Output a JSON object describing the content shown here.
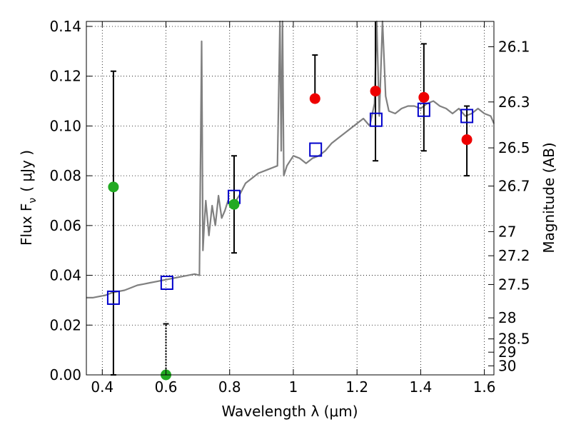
{
  "chart_data": {
    "type": "scatter",
    "xlabel": "Wavelength  λ (μm)",
    "ylabel": "Flux  F",
    "ylabel_subscript": "ν",
    "ylabel_unit": "( μJy )",
    "ylabel_right": "Magnitude (AB)",
    "xlim": [
      0.35,
      1.63
    ],
    "ylim": [
      0.0,
      0.142
    ],
    "x_ticks": [
      0.4,
      0.6,
      0.8,
      1.0,
      1.2,
      1.4,
      1.6
    ],
    "x_tick_labels": [
      "0.4",
      "0.6",
      "0.8",
      "1",
      "1.2",
      "1.4",
      "1.6"
    ],
    "y_ticks": [
      0.0,
      0.02,
      0.04,
      0.06,
      0.08,
      0.1,
      0.12,
      0.14
    ],
    "y_tick_labels": [
      "0.00",
      "0.02",
      "0.04",
      "0.06",
      "0.08",
      "0.10",
      "0.12",
      "0.14"
    ],
    "mag_ticks": [
      26.1,
      26.3,
      26.5,
      26.7,
      27,
      27.2,
      27.5,
      28,
      28.5,
      29,
      30
    ],
    "mag_tick_labels": [
      "26.1",
      "26.3",
      "26.5",
      "26.7",
      "27",
      "27.2",
      "27.5",
      "28",
      "28.5",
      "29",
      "30"
    ],
    "grid": true,
    "colors": {
      "spectrum": "#808080",
      "model_box": "#0000cc",
      "green": "#22aa22",
      "red": "#ee0000",
      "errorbar": "#000000"
    },
    "series": [
      {
        "name": "model_spectrum",
        "kind": "line",
        "x": [
          0.35,
          0.37,
          0.39,
          0.41,
          0.43,
          0.45,
          0.47,
          0.49,
          0.51,
          0.53,
          0.55,
          0.57,
          0.59,
          0.61,
          0.63,
          0.65,
          0.67,
          0.69,
          0.705,
          0.712,
          0.716,
          0.72,
          0.725,
          0.735,
          0.745,
          0.755,
          0.765,
          0.775,
          0.785,
          0.795,
          0.81,
          0.83,
          0.85,
          0.87,
          0.89,
          0.91,
          0.93,
          0.95,
          0.958,
          0.962,
          0.966,
          0.97,
          0.98,
          1.0,
          1.02,
          1.04,
          1.06,
          1.08,
          1.1,
          1.12,
          1.14,
          1.16,
          1.18,
          1.2,
          1.22,
          1.24,
          1.255,
          1.262,
          1.27,
          1.28,
          1.29,
          1.3,
          1.32,
          1.34,
          1.36,
          1.38,
          1.4,
          1.42,
          1.44,
          1.46,
          1.48,
          1.5,
          1.52,
          1.54,
          1.56,
          1.58,
          1.6,
          1.62,
          1.63
        ],
        "y": [
          0.031,
          0.031,
          0.0315,
          0.032,
          0.033,
          0.0335,
          0.034,
          0.035,
          0.036,
          0.0365,
          0.037,
          0.0375,
          0.038,
          0.0385,
          0.039,
          0.0395,
          0.04,
          0.0405,
          0.04,
          0.134,
          0.05,
          0.06,
          0.07,
          0.056,
          0.068,
          0.06,
          0.072,
          0.063,
          0.066,
          0.07,
          0.068,
          0.072,
          0.077,
          0.079,
          0.081,
          0.082,
          0.083,
          0.084,
          0.142,
          0.09,
          0.145,
          0.08,
          0.084,
          0.088,
          0.087,
          0.085,
          0.087,
          0.088,
          0.09,
          0.093,
          0.095,
          0.097,
          0.099,
          0.101,
          0.103,
          0.1,
          0.109,
          0.143,
          0.104,
          0.142,
          0.112,
          0.106,
          0.105,
          0.107,
          0.108,
          0.108,
          0.107,
          0.109,
          0.11,
          0.108,
          0.107,
          0.105,
          0.107,
          0.104,
          0.105,
          0.107,
          0.105,
          0.104,
          0.101
        ]
      },
      {
        "name": "model_photometry",
        "kind": "open_square",
        "x": [
          0.435,
          0.603,
          0.814,
          1.07,
          1.26,
          1.41,
          1.545
        ],
        "y": [
          0.031,
          0.037,
          0.0715,
          0.0905,
          0.1025,
          0.1065,
          0.104
        ]
      },
      {
        "name": "observed_green",
        "kind": "filled_circle",
        "x": [
          0.435,
          0.6,
          0.814
        ],
        "y": [
          0.0755,
          0.0,
          0.0685
        ],
        "err_low": [
          0.0755,
          0.0,
          0.0195
        ],
        "err_high": [
          0.0465,
          0.0205,
          0.0195
        ]
      },
      {
        "name": "observed_red",
        "kind": "filled_circle",
        "x": [
          1.068,
          1.258,
          1.41,
          1.545
        ],
        "y": [
          0.111,
          0.114,
          0.1115,
          0.0945
        ],
        "err_low": [
          0.0,
          0.028,
          0.0215,
          0.0145
        ],
        "err_high": [
          0.0175,
          0.028,
          0.0215,
          0.0135
        ]
      }
    ]
  }
}
